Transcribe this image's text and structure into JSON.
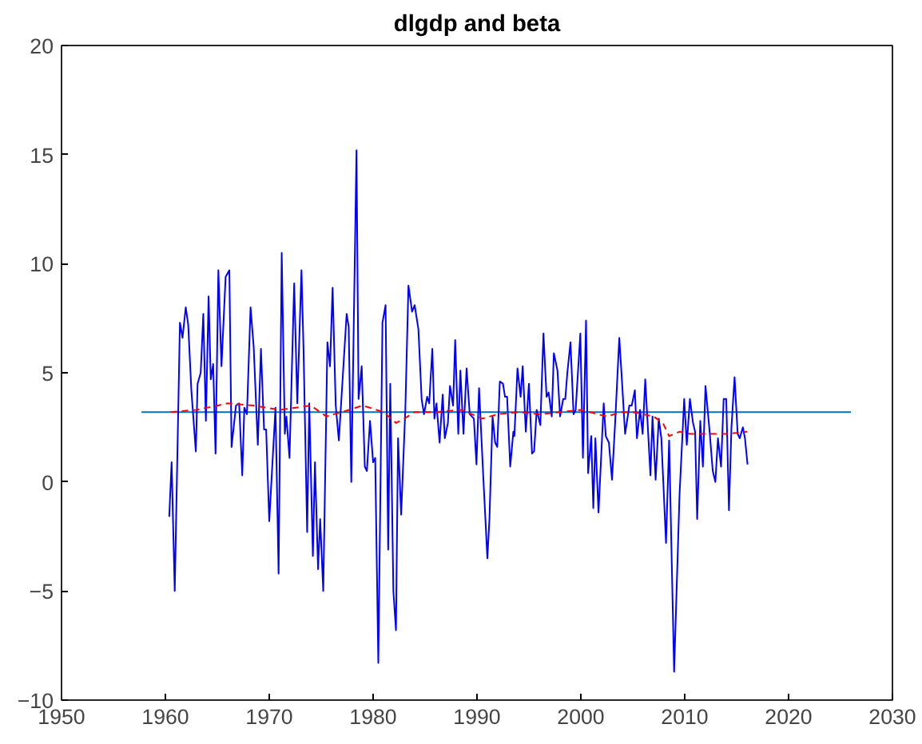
{
  "chart_data": {
    "type": "line",
    "title": "dlgdp and beta",
    "xlim": [
      1950,
      2030
    ],
    "ylim": [
      -10,
      20
    ],
    "xticks": [
      1950,
      1960,
      1970,
      1980,
      1990,
      2000,
      2010,
      2020,
      2030
    ],
    "yticks": [
      -10,
      -5,
      0,
      5,
      10,
      15,
      20
    ],
    "grid": false,
    "series": [
      {
        "color": "#0000ff",
        "line_style": "solid",
        "x": [
          1960.37,
          1960.6,
          1960.9,
          1961.4,
          1961.65,
          1961.96,
          1962.2,
          1962.5,
          1962.93,
          1963.1,
          1963.4,
          1963.65,
          1963.9,
          1964.16,
          1964.37,
          1964.6,
          1964.83,
          1965.1,
          1965.4,
          1965.8,
          1966.16,
          1966.37,
          1966.8,
          1967.1,
          1967.4,
          1967.6,
          1967.85,
          1968.2,
          1968.5,
          1968.9,
          1969.2,
          1969.5,
          1969.7,
          1970.0,
          1970.6,
          1970.9,
          1971.2,
          1971.5,
          1971.65,
          1971.95,
          1972.4,
          1972.7,
          1973.1,
          1973.3,
          1973.65,
          1973.85,
          1974.2,
          1974.4,
          1974.7,
          1974.9,
          1975.2,
          1975.6,
          1975.85,
          1976.1,
          1976.4,
          1976.7,
          1977.45,
          1977.65,
          1977.9,
          1978.4,
          1978.6,
          1978.9,
          1979.2,
          1979.4,
          1979.7,
          1980.0,
          1980.2,
          1980.5,
          1980.9,
          1981.2,
          1981.45,
          1981.65,
          1981.95,
          1982.2,
          1982.4,
          1982.7,
          1983.1,
          1983.4,
          1983.75,
          1984.0,
          1984.36,
          1984.67,
          1984.9,
          1985.2,
          1985.4,
          1985.7,
          1985.9,
          1986.1,
          1986.4,
          1986.7,
          1986.9,
          1987.2,
          1987.4,
          1987.7,
          1987.9,
          1988.2,
          1988.4,
          1988.7,
          1989.0,
          1989.3,
          1989.7,
          1989.95,
          1990.2,
          1990.6,
          1991.0,
          1991.2,
          1991.5,
          1991.75,
          1991.95,
          1992.2,
          1992.5,
          1992.7,
          1992.9,
          1993.2,
          1993.5,
          1993.6,
          1993.9,
          1994.2,
          1994.4,
          1994.7,
          1995.0,
          1995.3,
          1995.5,
          1995.75,
          1996.1,
          1996.4,
          1996.7,
          1996.9,
          1997.2,
          1997.4,
          1997.75,
          1998.0,
          1998.3,
          1998.5,
          1998.7,
          1999.0,
          1999.3,
          1999.5,
          1999.95,
          2000.2,
          2000.5,
          2000.7,
          2001.0,
          2001.2,
          2001.4,
          2001.7,
          2002.2,
          2002.4,
          2002.7,
          2003.0,
          2003.3,
          2003.7,
          2003.95,
          2004.26,
          2004.67,
          2004.9,
          2005.2,
          2005.4,
          2005.7,
          2005.95,
          2006.2,
          2006.7,
          2006.9,
          2007.2,
          2007.5,
          2007.75,
          2008.2,
          2008.5,
          2008.98,
          2009.5,
          2009.95,
          2010.2,
          2010.5,
          2010.8,
          2011.0,
          2011.2,
          2011.5,
          2011.75,
          2012.0,
          2012.4,
          2012.7,
          2012.95,
          2013.2,
          2013.5,
          2013.75,
          2014.0,
          2014.26,
          2014.5,
          2014.8,
          2015.1,
          2015.3,
          2015.6,
          2015.8,
          2016.05
        ],
        "values": [
          -1.6,
          0.9,
          -5.0,
          7.3,
          6.6,
          8.0,
          7.2,
          4.2,
          1.4,
          4.5,
          5.0,
          7.7,
          2.8,
          8.5,
          4.7,
          5.4,
          1.3,
          9.7,
          5.3,
          9.4,
          9.7,
          1.6,
          3.5,
          3.6,
          0.3,
          3.4,
          3.1,
          8.0,
          6.2,
          1.7,
          6.1,
          2.4,
          2.4,
          -1.8,
          3.4,
          -4.2,
          10.5,
          2.2,
          3.0,
          1.1,
          9.1,
          3.6,
          9.7,
          6.1,
          -2.3,
          3.6,
          -3.4,
          0.9,
          -4.0,
          -1.7,
          -5.0,
          6.4,
          5.3,
          8.9,
          3.5,
          1.9,
          7.7,
          7.1,
          0.0,
          15.2,
          3.8,
          5.3,
          0.7,
          0.5,
          2.8,
          0.9,
          1.1,
          -8.3,
          7.3,
          8.1,
          -3.1,
          4.5,
          -5.0,
          -6.8,
          2.0,
          -1.5,
          3.3,
          9.0,
          7.8,
          8.1,
          7.0,
          3.8,
          3.1,
          3.9,
          3.6,
          6.1,
          2.9,
          3.6,
          1.8,
          4.0,
          2.0,
          2.7,
          4.4,
          3.5,
          6.5,
          2.2,
          5.1,
          2.2,
          5.2,
          3.1,
          2.9,
          0.8,
          4.3,
          0.3,
          -3.5,
          -1.7,
          3.0,
          1.8,
          1.6,
          4.6,
          4.5,
          3.9,
          3.9,
          0.7,
          2.3,
          2.1,
          5.2,
          3.9,
          5.3,
          2.3,
          4.5,
          1.3,
          1.4,
          3.3,
          2.6,
          6.8,
          3.9,
          4.1,
          3.0,
          5.9,
          5.1,
          3.0,
          3.8,
          3.8,
          5.0,
          6.4,
          3.1,
          3.3,
          6.8,
          1.1,
          7.4,
          0.4,
          2.1,
          -1.2,
          2.0,
          -1.4,
          3.6,
          2.1,
          1.8,
          0.1,
          2.7,
          6.6,
          4.7,
          2.2,
          3.5,
          3.5,
          4.2,
          2.0,
          3.3,
          2.2,
          4.7,
          0.3,
          3.0,
          0.1,
          2.9,
          2.0,
          -2.8,
          1.9,
          -8.7,
          -0.6,
          3.8,
          1.7,
          3.8,
          2.7,
          2.3,
          -1.7,
          2.8,
          0.7,
          4.4,
          2.3,
          0.5,
          0.0,
          2.0,
          0.7,
          3.8,
          3.8,
          -1.3,
          2.5,
          4.8,
          2.2,
          2.0,
          2.5,
          2.0,
          0.8
        ]
      },
      {
        "color": "#ff0000",
        "line_style": "dashed",
        "x": [
          1960.5,
          1963,
          1966,
          1968.5,
          1971,
          1974,
          1975.5,
          1977,
          1979,
          1981,
          1982.2,
          1983,
          1984,
          1986,
          1988.5,
          1990.5,
          1992,
          1994,
          1996,
          1998,
          2000,
          2002.5,
          2004,
          2005,
          2007,
          2007.9,
          2008.5,
          2009.5,
          2010.5,
          2012.5,
          2014,
          2016
        ],
        "values": [
          3.2,
          3.3,
          3.6,
          3.5,
          3.3,
          3.5,
          3.0,
          3.2,
          3.5,
          3.2,
          2.7,
          2.9,
          3.2,
          3.2,
          3.3,
          2.9,
          3.1,
          3.2,
          3.1,
          3.2,
          3.3,
          3.0,
          3.2,
          3.2,
          3.0,
          2.7,
          2.1,
          2.3,
          2.2,
          2.2,
          2.2,
          2.3
        ]
      },
      {
        "color": "#0072bd",
        "line_style": "solid",
        "x": [
          1957.7,
          2026
        ],
        "values": [
          3.2,
          3.2
        ]
      }
    ]
  }
}
